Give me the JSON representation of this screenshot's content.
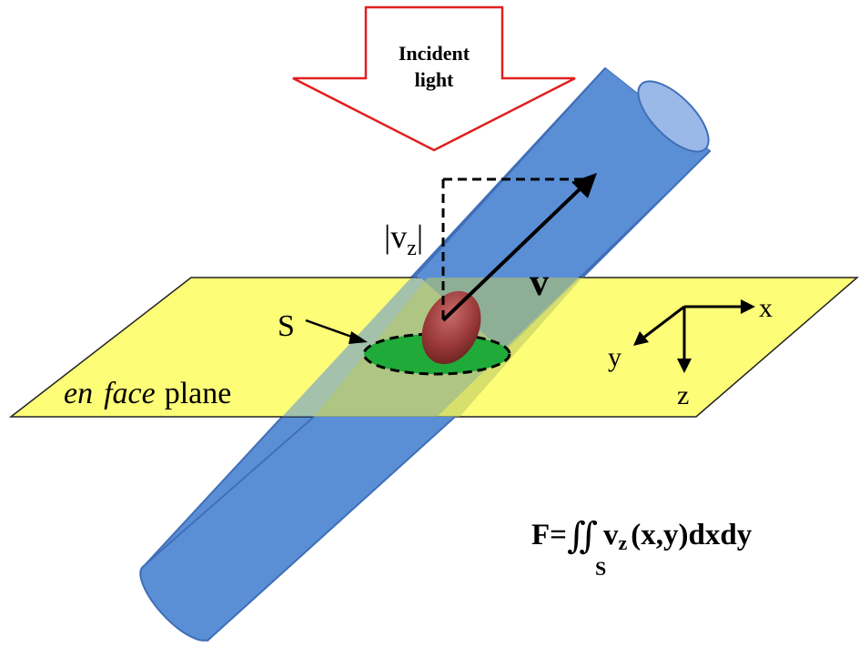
{
  "arrow_label": {
    "line1": "Incident",
    "line2": "light"
  },
  "velocity_label": "v",
  "vz_label": {
    "bar_left": "|",
    "v": "v",
    "sub": "z",
    "bar_right": "|"
  },
  "s_label": "S",
  "plane_label": {
    "italic1": "en",
    "italic2": "face",
    "normal": "plane"
  },
  "axes": {
    "x": "x",
    "y": "y",
    "z": "z"
  },
  "formula": {
    "lhs": "F=",
    "integral": "∬",
    "integrand_v": "v",
    "integrand_sub": "z",
    "rest": "(x,y)dxdy",
    "domain": "S"
  },
  "colors": {
    "vessel": "#5a8fd6",
    "vessel_dark": "#3f6fb8",
    "plane": "#fdfd78",
    "plane_stroke": "#222222",
    "cross_section": "#1faa3a",
    "cell": "#9b3a3a",
    "arrow_outline": "#e02020",
    "overlap": "#b9c862"
  }
}
